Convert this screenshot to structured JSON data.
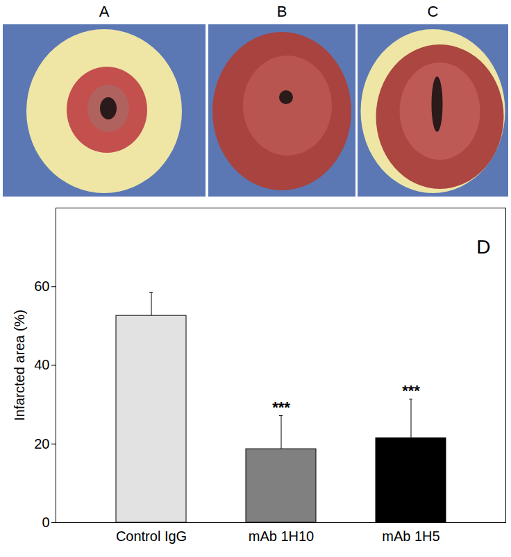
{
  "chart_data": {
    "type": "bar",
    "categories": [
      "Control IgG",
      "mAb 1H10",
      "mAb 1H5"
    ],
    "values": [
      52.6,
      18.7,
      21.5
    ],
    "errors": [
      5.9,
      8.5,
      9.9
    ],
    "colors": [
      "#e2e2e2",
      "#808080",
      "#000000"
    ],
    "ylabel": "Infarcted area (%)",
    "ylim": [
      0,
      80
    ],
    "yticks": [
      0,
      20,
      40,
      60
    ],
    "grid": false,
    "annotations": [
      {
        "text": "D"
      },
      {
        "text": "***",
        "category": "mAb 1H10"
      },
      {
        "text": "***",
        "category": "mAb 1H5"
      }
    ]
  },
  "photos": {
    "labels": [
      "A",
      "B",
      "C"
    ]
  }
}
